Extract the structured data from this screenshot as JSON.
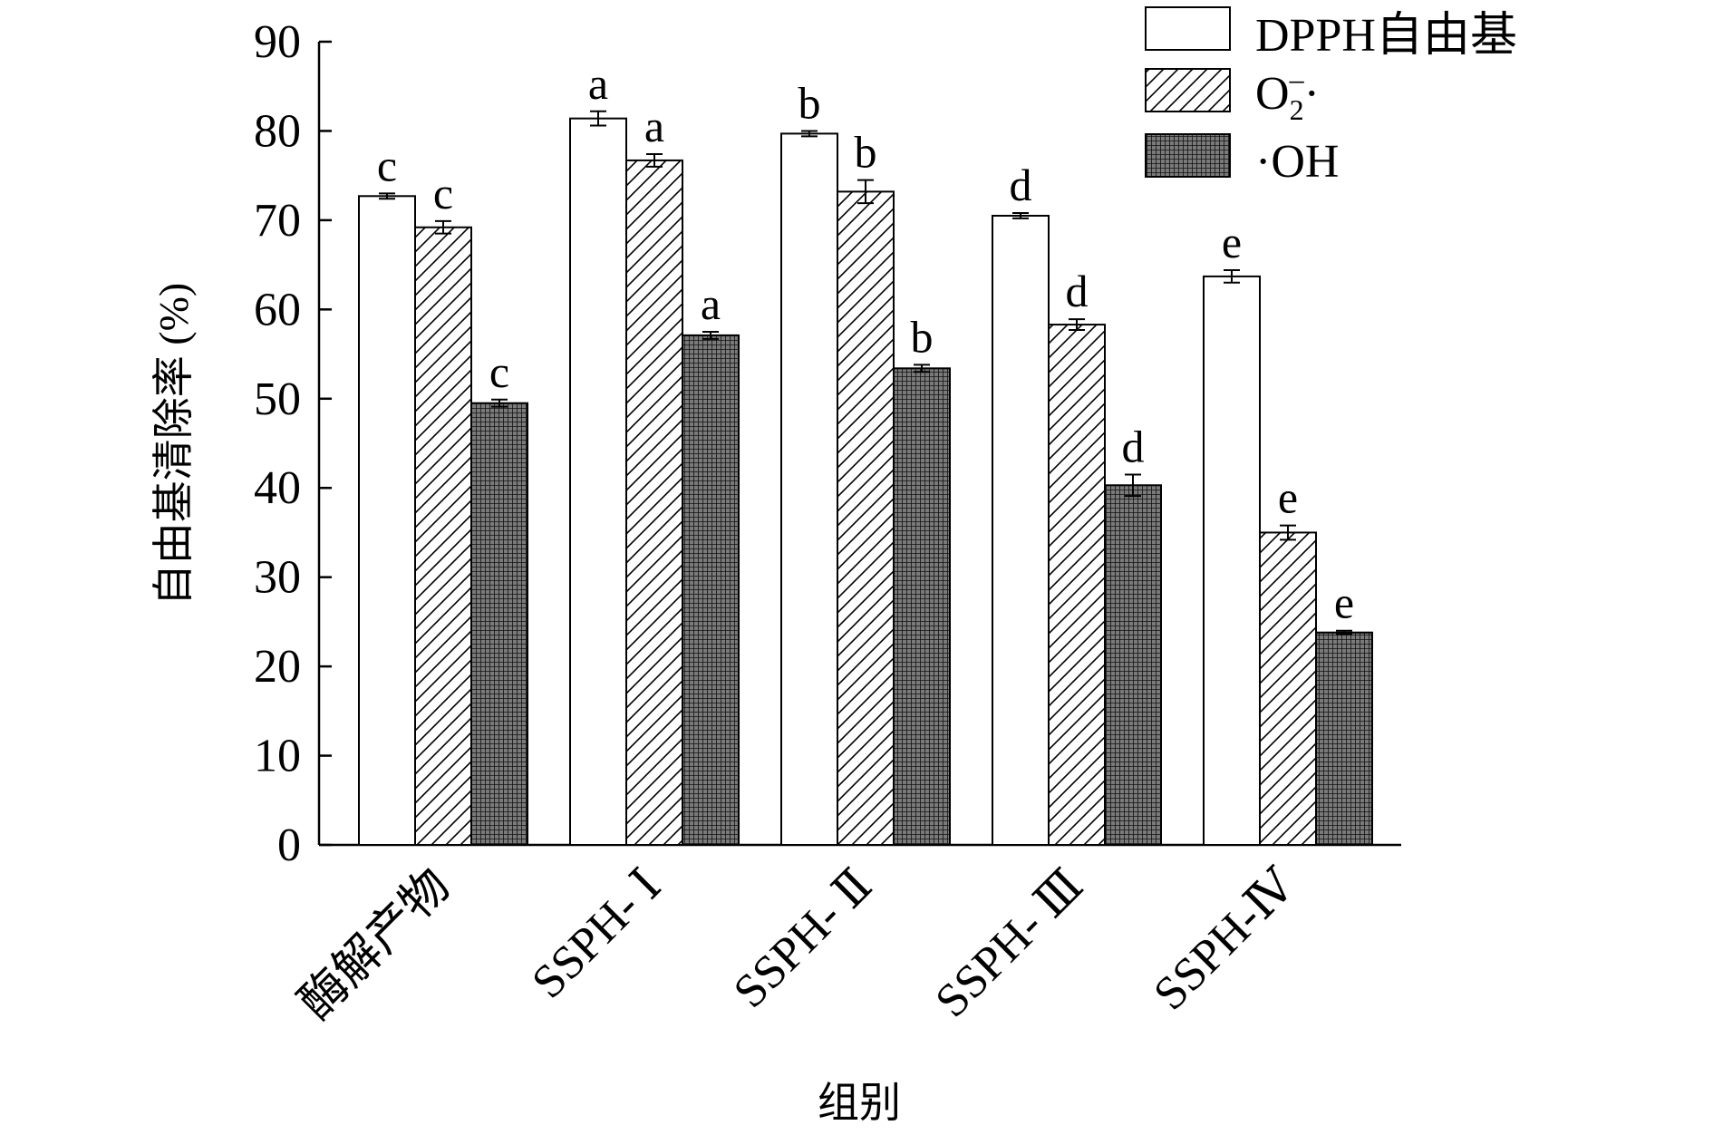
{
  "chart_data": {
    "type": "bar",
    "title": "",
    "xlabel": "组别",
    "ylabel": "自由基清除率 (%)",
    "ylim": [
      0,
      90
    ],
    "yticks": [
      "0",
      "10",
      "20",
      "30",
      "40",
      "50",
      "60",
      "70",
      "80",
      "90"
    ],
    "categories": [
      "酶解产物",
      "SSPH- Ⅰ",
      "SSPH- Ⅱ",
      "SSPH- Ⅲ",
      "SSPH-Ⅳ"
    ],
    "series": [
      {
        "name": "DPPH自由基",
        "pattern": "white",
        "values": [
          72.7,
          81.4,
          79.7,
          70.5,
          63.7
        ],
        "errors": [
          0.3,
          0.8,
          0.3,
          0.3,
          0.7
        ],
        "letters": [
          "c",
          "a",
          "b",
          "d",
          "e"
        ]
      },
      {
        "name": "O₂⁻·",
        "pattern": "hatch",
        "values": [
          69.2,
          76.7,
          73.2,
          58.3,
          35.0
        ],
        "errors": [
          0.7,
          0.7,
          1.3,
          0.6,
          0.8
        ],
        "letters": [
          "c",
          "a",
          "b",
          "d",
          "e"
        ]
      },
      {
        "name": "·OH",
        "pattern": "dense",
        "values": [
          49.5,
          57.1,
          53.4,
          40.3,
          23.8
        ],
        "errors": [
          0.4,
          0.4,
          0.4,
          1.2,
          0.2
        ],
        "letters": [
          "c",
          "a",
          "b",
          "d",
          "e"
        ]
      }
    ],
    "legend": {
      "position": "top-right",
      "labels": [
        "DPPH自由基",
        "O",
        "2",
        "–",
        "·",
        "·OH"
      ]
    }
  }
}
